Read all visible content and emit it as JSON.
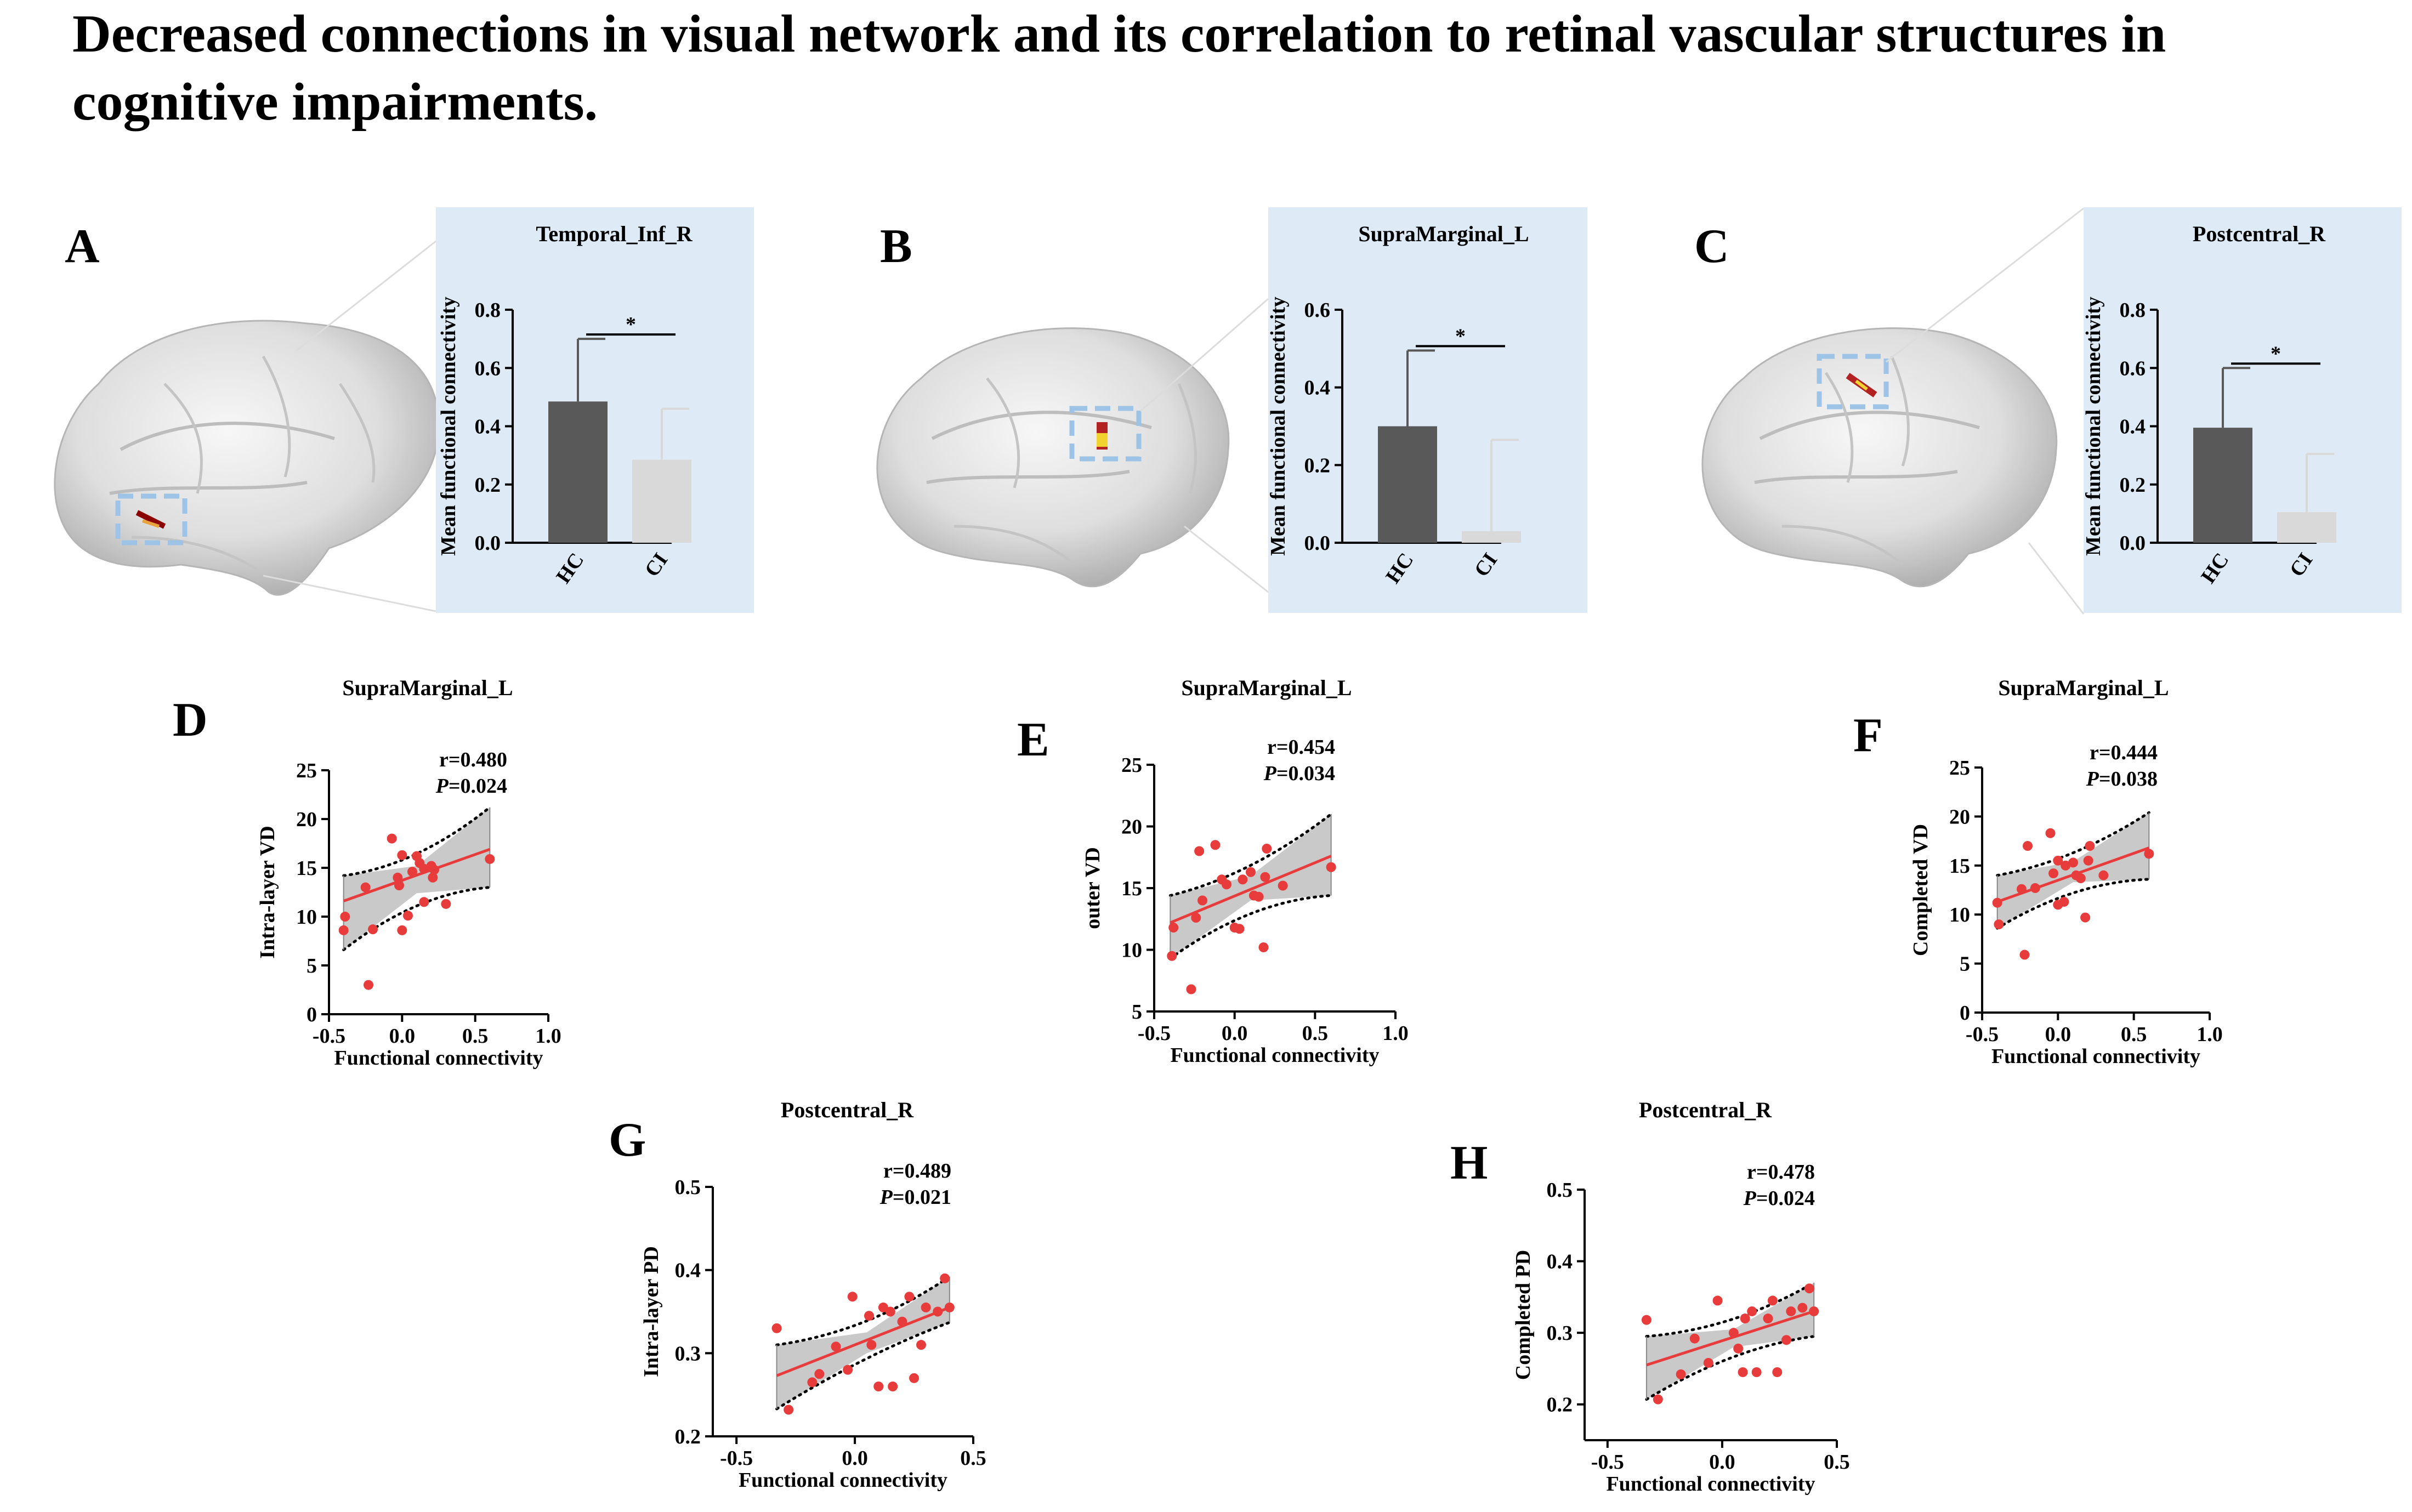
{
  "title": "Decreased connections in visual network and its correlation to retinal vascular structures in cognitive impairments.",
  "colors": {
    "hc_bar": "#595959",
    "ci_bar": "#d9d9d9",
    "inset_bg": "#deebf7",
    "roi_box": "#9dc3e6",
    "fit_line": "#e83b3b",
    "points": "#e83b3b",
    "ci_band": "#bfbfbf"
  },
  "chart_data": [
    {
      "type": "bar",
      "panel": "A",
      "title": "Temporal_Inf_R",
      "categories": [
        "HC",
        "CI"
      ],
      "values": [
        0.485,
        0.285
      ],
      "errors": [
        0.215,
        0.175
      ],
      "significance": "*",
      "ylabel": "Mean functional connectivity",
      "ylim": [
        0,
        0.8
      ],
      "yticks": [
        "0.0",
        "0.2",
        "0.4",
        "0.6",
        "0.8"
      ]
    },
    {
      "type": "bar",
      "panel": "B",
      "title": "SupraMarginal_L",
      "categories": [
        "HC",
        "CI"
      ],
      "values": [
        0.3,
        0.03
      ],
      "errors": [
        0.195,
        0.235
      ],
      "significance": "*",
      "ylabel": "Mean functional connectivity",
      "ylim": [
        0,
        0.6
      ],
      "yticks": [
        "0.0",
        "0.2",
        "0.4",
        "0.6"
      ]
    },
    {
      "type": "bar",
      "panel": "C",
      "title": "Postcentral_R",
      "categories": [
        "HC",
        "CI"
      ],
      "values": [
        0.395,
        0.105
      ],
      "errors": [
        0.205,
        0.2
      ],
      "significance": "*",
      "ylabel": "Mean functional connectivity",
      "ylim": [
        0,
        0.8
      ],
      "yticks": [
        "0.0",
        "0.2",
        "0.4",
        "0.6",
        "0.8"
      ]
    },
    {
      "type": "scatter",
      "panel": "D",
      "title": "SupraMarginal_L",
      "xlabel": "Functional connectivity",
      "ylabel": "Intra-layer VD",
      "xlim": [
        -0.5,
        1.0
      ],
      "ylim": [
        0,
        25
      ],
      "xticks": [
        "-0.5",
        "0.0",
        "0.5",
        "1.0"
      ],
      "yticks": [
        "0",
        "5",
        "10",
        "15",
        "20",
        "25"
      ],
      "r": "r=0.480",
      "p_label": "P",
      "p_value": "=0.024",
      "fit": {
        "x0": -0.4,
        "y0": 11.6,
        "x1": 0.6,
        "y1": 16.9
      },
      "band_upper": [
        [
          -0.4,
          14.2
        ],
        [
          0.1,
          15.2
        ],
        [
          0.6,
          21.2
        ]
      ],
      "band_lower": [
        [
          -0.4,
          6.6
        ],
        [
          0.1,
          12.4
        ],
        [
          0.6,
          13.0
        ]
      ],
      "points": [
        [
          -0.39,
          10.0
        ],
        [
          -0.4,
          8.6
        ],
        [
          -0.25,
          13.0
        ],
        [
          -0.23,
          3.0
        ],
        [
          -0.2,
          8.7
        ],
        [
          -0.07,
          18.0
        ],
        [
          -0.03,
          14.0
        ],
        [
          -0.02,
          13.2
        ],
        [
          0.0,
          16.3
        ],
        [
          0.0,
          8.6
        ],
        [
          0.04,
          10.1
        ],
        [
          0.07,
          14.6
        ],
        [
          0.1,
          16.2
        ],
        [
          0.12,
          15.5
        ],
        [
          0.15,
          11.5
        ],
        [
          0.15,
          14.9
        ],
        [
          0.2,
          15.2
        ],
        [
          0.21,
          14.0
        ],
        [
          0.22,
          14.8
        ],
        [
          0.3,
          11.3
        ],
        [
          0.6,
          15.9
        ]
      ]
    },
    {
      "type": "scatter",
      "panel": "E",
      "title": "SupraMarginal_L",
      "xlabel": "Functional connectivity",
      "ylabel": "outer VD",
      "xlim": [
        -0.5,
        1.0
      ],
      "ylim": [
        5,
        25
      ],
      "xticks": [
        "-0.5",
        "0.0",
        "0.5",
        "1.0"
      ],
      "yticks": [
        "5",
        "10",
        "15",
        "20",
        "25"
      ],
      "r": "r=0.454",
      "p_label": "P",
      "p_value": "=0.034",
      "fit": {
        "x0": -0.4,
        "y0": 12.2,
        "x1": 0.6,
        "y1": 17.6
      },
      "band_upper": [
        [
          -0.4,
          14.4
        ],
        [
          0.1,
          16.0
        ],
        [
          0.6,
          21.0
        ]
      ],
      "band_lower": [
        [
          -0.4,
          9.3
        ],
        [
          0.1,
          14.0
        ],
        [
          0.6,
          14.4
        ]
      ],
      "points": [
        [
          -0.39,
          9.5
        ],
        [
          -0.38,
          11.8
        ],
        [
          -0.27,
          6.8
        ],
        [
          -0.24,
          12.6
        ],
        [
          -0.2,
          14.0
        ],
        [
          -0.22,
          18.0
        ],
        [
          -0.12,
          18.5
        ],
        [
          -0.08,
          15.7
        ],
        [
          -0.05,
          15.3
        ],
        [
          0.0,
          11.8
        ],
        [
          0.03,
          11.7
        ],
        [
          0.05,
          15.7
        ],
        [
          0.1,
          16.3
        ],
        [
          0.12,
          14.4
        ],
        [
          0.15,
          14.3
        ],
        [
          0.18,
          10.2
        ],
        [
          0.19,
          15.9
        ],
        [
          0.2,
          18.2
        ],
        [
          0.3,
          15.2
        ],
        [
          0.6,
          16.7
        ]
      ]
    },
    {
      "type": "scatter",
      "panel": "F",
      "title": "SupraMarginal_L",
      "xlabel": "Functional connectivity",
      "ylabel": "Completed VD",
      "xlim": [
        -0.5,
        1.0
      ],
      "ylim": [
        0,
        25
      ],
      "xticks": [
        "-0.5",
        "0.0",
        "0.5",
        "1.0"
      ],
      "yticks": [
        "0",
        "5",
        "10",
        "15",
        "20",
        "25"
      ],
      "r": "r=0.444",
      "p_label": "P",
      "p_value": "=0.038",
      "fit": {
        "x0": -0.4,
        "y0": 11.3,
        "x1": 0.6,
        "y1": 16.8
      },
      "band_upper": [
        [
          -0.4,
          14.0
        ],
        [
          0.1,
          15.4
        ],
        [
          0.6,
          20.4
        ]
      ],
      "band_lower": [
        [
          -0.4,
          8.6
        ],
        [
          0.1,
          13.3
        ],
        [
          0.6,
          13.6
        ]
      ],
      "points": [
        [
          -0.4,
          11.2
        ],
        [
          -0.39,
          9.0
        ],
        [
          -0.24,
          12.6
        ],
        [
          -0.22,
          5.9
        ],
        [
          -0.2,
          17.0
        ],
        [
          -0.15,
          12.7
        ],
        [
          -0.05,
          18.3
        ],
        [
          -0.03,
          14.2
        ],
        [
          0.0,
          15.5
        ],
        [
          0.0,
          11.0
        ],
        [
          0.04,
          11.3
        ],
        [
          0.05,
          15.0
        ],
        [
          0.1,
          15.3
        ],
        [
          0.12,
          14.0
        ],
        [
          0.15,
          13.7
        ],
        [
          0.18,
          9.7
        ],
        [
          0.2,
          15.5
        ],
        [
          0.21,
          17.0
        ],
        [
          0.3,
          14.0
        ],
        [
          0.6,
          16.2
        ]
      ]
    },
    {
      "type": "scatter",
      "panel": "G",
      "title": "Postcentral_R",
      "xlabel": "Functional connectivity",
      "ylabel": "Intra-layer PD",
      "xlim": [
        -0.6,
        0.5
      ],
      "ylim": [
        0.2,
        0.5
      ],
      "xticks": [
        "-0.5",
        "0.0",
        "0.5"
      ],
      "yticks": [
        "0.2",
        "0.3",
        "0.4",
        "0.5"
      ],
      "r": "r=0.489",
      "p_label": "P",
      "p_value": "=0.021",
      "fit": {
        "x0": -0.33,
        "y0": 0.273,
        "x1": 0.4,
        "y1": 0.355
      },
      "band_upper": [
        [
          -0.33,
          0.31
        ],
        [
          0.05,
          0.325
        ],
        [
          0.4,
          0.392
        ]
      ],
      "band_lower": [
        [
          -0.33,
          0.233
        ],
        [
          0.05,
          0.3
        ],
        [
          0.4,
          0.337
        ]
      ],
      "points": [
        [
          -0.33,
          0.33
        ],
        [
          -0.28,
          0.232
        ],
        [
          -0.18,
          0.265
        ],
        [
          -0.15,
          0.275
        ],
        [
          -0.08,
          0.308
        ],
        [
          -0.03,
          0.28
        ],
        [
          -0.01,
          0.368
        ],
        [
          0.06,
          0.345
        ],
        [
          0.07,
          0.31
        ],
        [
          0.1,
          0.26
        ],
        [
          0.12,
          0.355
        ],
        [
          0.15,
          0.35
        ],
        [
          0.16,
          0.26
        ],
        [
          0.2,
          0.338
        ],
        [
          0.23,
          0.368
        ],
        [
          0.25,
          0.27
        ],
        [
          0.28,
          0.31
        ],
        [
          0.3,
          0.355
        ],
        [
          0.35,
          0.35
        ],
        [
          0.38,
          0.39
        ],
        [
          0.4,
          0.355
        ]
      ]
    },
    {
      "type": "scatter",
      "panel": "H",
      "title": "Postcentral_R",
      "xlabel": "Functional connectivity",
      "ylabel": "Completed PD",
      "xlim": [
        -0.6,
        0.5
      ],
      "ylim": [
        0.15,
        0.5
      ],
      "xticks": [
        "-0.5",
        "0.0",
        "0.5"
      ],
      "yticks": [
        "0.2",
        "0.3",
        "0.4",
        "0.5"
      ],
      "r": "r=0.478",
      "p_label": "P",
      "p_value": "=0.024",
      "fit": {
        "x0": -0.33,
        "y0": 0.255,
        "x1": 0.4,
        "y1": 0.33
      },
      "band_upper": [
        [
          -0.33,
          0.295
        ],
        [
          0.05,
          0.305
        ],
        [
          0.4,
          0.37
        ]
      ],
      "band_lower": [
        [
          -0.33,
          0.207
        ],
        [
          0.05,
          0.28
        ],
        [
          0.4,
          0.295
        ]
      ],
      "points": [
        [
          -0.33,
          0.318
        ],
        [
          -0.28,
          0.207
        ],
        [
          -0.18,
          0.242
        ],
        [
          -0.12,
          0.292
        ],
        [
          -0.06,
          0.258
        ],
        [
          -0.02,
          0.345
        ],
        [
          0.05,
          0.3
        ],
        [
          0.07,
          0.278
        ],
        [
          0.09,
          0.245
        ],
        [
          0.1,
          0.32
        ],
        [
          0.13,
          0.33
        ],
        [
          0.15,
          0.245
        ],
        [
          0.2,
          0.32
        ],
        [
          0.22,
          0.345
        ],
        [
          0.24,
          0.245
        ],
        [
          0.28,
          0.29
        ],
        [
          0.3,
          0.33
        ],
        [
          0.35,
          0.335
        ],
        [
          0.38,
          0.362
        ],
        [
          0.4,
          0.33
        ]
      ]
    }
  ]
}
